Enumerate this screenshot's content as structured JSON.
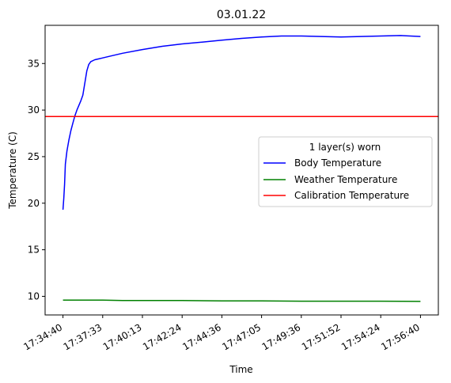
{
  "chart_data": {
    "type": "line",
    "title": "03.01.22",
    "xlabel": "Time",
    "ylabel": "Temperature (C)",
    "ylim": [
      8.0,
      39.1
    ],
    "yticks": [
      10,
      15,
      20,
      25,
      30,
      35
    ],
    "xlim": [
      -0.45,
      9.45
    ],
    "xticks": [
      "17:34:40",
      "17:37:33",
      "17:40:13",
      "17:42:24",
      "17:44:36",
      "17:47:05",
      "17:49:36",
      "17:51:52",
      "17:54:24",
      "17:56:40"
    ],
    "grid": false,
    "legend": {
      "title": "1 layer(s) worn",
      "placement": "center-right",
      "entries": [
        "Body Temperature",
        "Weather Temperature",
        "Calibration Temperature"
      ]
    },
    "series": [
      {
        "name": "Body Temperature",
        "color": "#0000ff",
        "points": [
          [
            0.0,
            19.3
          ],
          [
            0.02,
            20.5
          ],
          [
            0.04,
            22.0
          ],
          [
            0.06,
            24.2
          ],
          [
            0.1,
            25.6
          ],
          [
            0.15,
            26.8
          ],
          [
            0.2,
            27.8
          ],
          [
            0.25,
            28.6
          ],
          [
            0.3,
            29.4
          ],
          [
            0.35,
            30.0
          ],
          [
            0.4,
            30.5
          ],
          [
            0.45,
            31.0
          ],
          [
            0.5,
            31.6
          ],
          [
            0.55,
            32.9
          ],
          [
            0.6,
            34.2
          ],
          [
            0.65,
            34.9
          ],
          [
            0.7,
            35.2
          ],
          [
            0.8,
            35.4
          ],
          [
            0.9,
            35.5
          ],
          [
            1.0,
            35.6
          ],
          [
            1.2,
            35.8
          ],
          [
            1.5,
            36.1
          ],
          [
            2.0,
            36.5
          ],
          [
            2.5,
            36.85
          ],
          [
            3.0,
            37.1
          ],
          [
            3.5,
            37.3
          ],
          [
            4.0,
            37.5
          ],
          [
            4.5,
            37.7
          ],
          [
            5.0,
            37.85
          ],
          [
            5.5,
            37.95
          ],
          [
            6.0,
            37.95
          ],
          [
            6.5,
            37.9
          ],
          [
            7.0,
            37.85
          ],
          [
            7.5,
            37.9
          ],
          [
            8.0,
            37.95
          ],
          [
            8.5,
            38.0
          ],
          [
            9.0,
            37.9
          ]
        ]
      },
      {
        "name": "Weather Temperature",
        "color": "#008000",
        "points": [
          [
            0.0,
            9.6
          ],
          [
            1.0,
            9.6
          ],
          [
            1.5,
            9.55
          ],
          [
            2.0,
            9.55
          ],
          [
            3.0,
            9.55
          ],
          [
            4.0,
            9.5
          ],
          [
            5.0,
            9.5
          ],
          [
            6.0,
            9.48
          ],
          [
            7.0,
            9.48
          ],
          [
            8.0,
            9.48
          ],
          [
            9.0,
            9.45
          ]
        ]
      },
      {
        "name": "Calibration Temperature",
        "color": "#ff0000",
        "y": 29.3
      }
    ]
  }
}
